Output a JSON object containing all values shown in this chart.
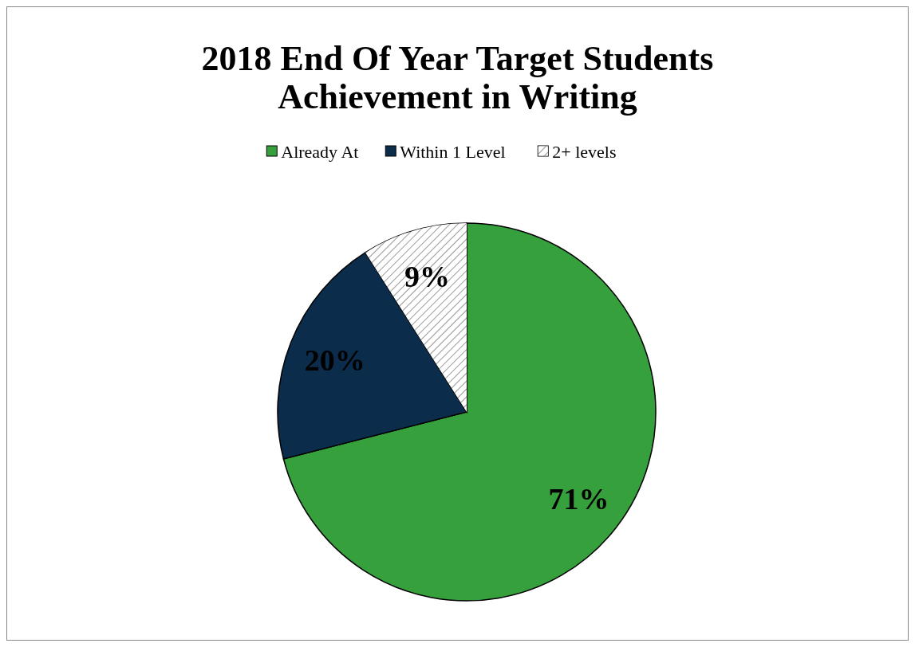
{
  "chart_data": {
    "type": "pie",
    "title": "2018 End Of Year Target Students Achievement in Writing",
    "categories": [
      "Already At",
      "Within 1 Level",
      "2+ levels"
    ],
    "values": [
      71,
      20,
      9
    ],
    "colors": [
      "#36a03c",
      "#0b2d4b",
      "#ffffff"
    ],
    "value_labels": [
      "71%",
      "20%",
      "9%"
    ],
    "legend": "top"
  }
}
